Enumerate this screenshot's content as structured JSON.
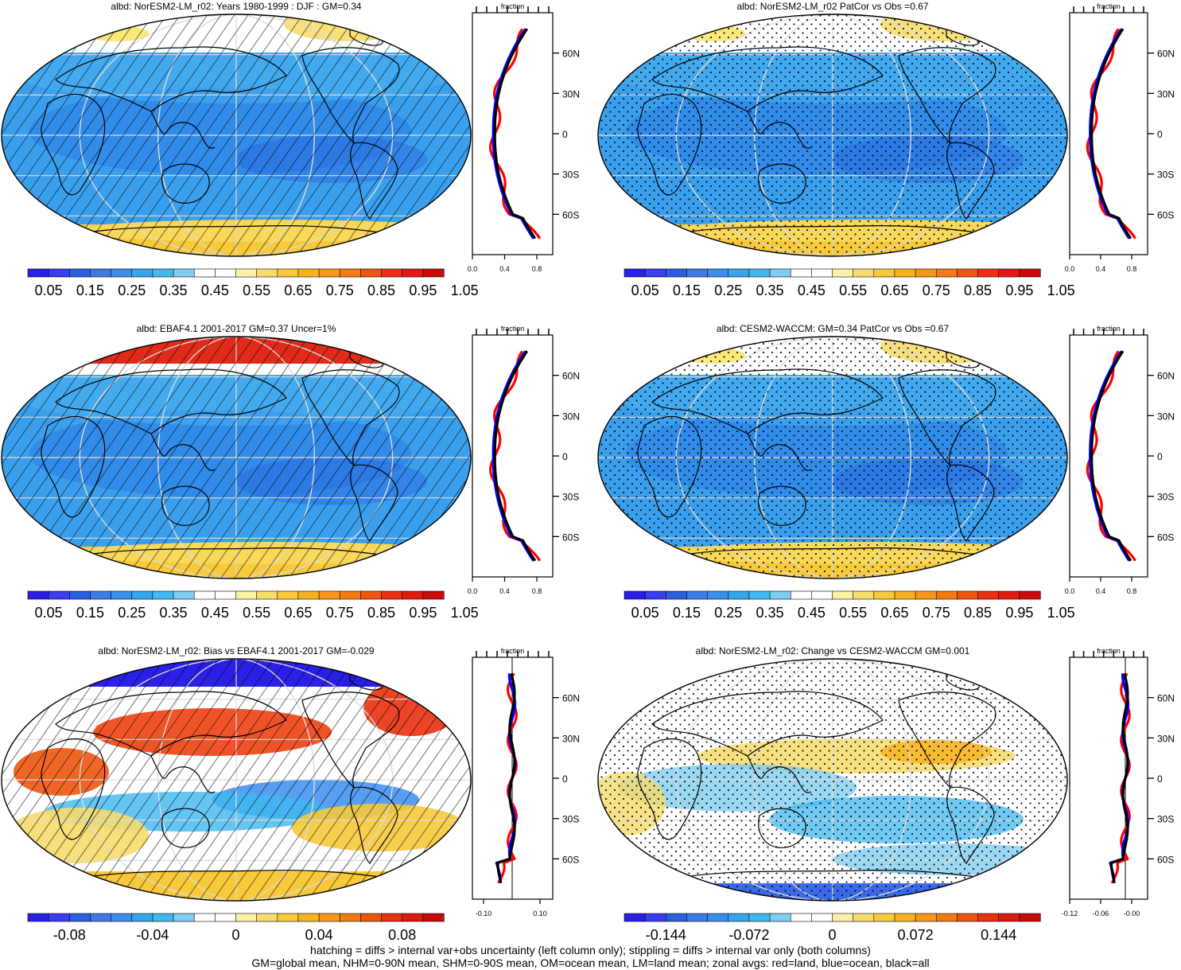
{
  "chart_data": [
    {
      "type": "heatmap",
      "title": "albd: NorESM2-LM_r02: Years 1980-1999 : DJF : GM=0.34",
      "zonal": {
        "title": "fraction",
        "xticks": [
          "0.0",
          "0.4",
          "0.8"
        ],
        "yticks": [
          "60N",
          "30N",
          "0",
          "30S",
          "60S"
        ],
        "series": [
          {
            "color": "#ff0000"
          },
          {
            "color": "#0000ff"
          },
          {
            "color": "#000000"
          }
        ]
      },
      "colorbar": [
        "0.05",
        "0.15",
        "0.25",
        "0.35",
        "0.45",
        "0.55",
        "0.65",
        "0.75",
        "0.85",
        "0.95",
        "1.05"
      ]
    },
    {
      "type": "heatmap",
      "title": "albd: NorESM2-LM_r02 PatCor vs Obs =0.67",
      "zonal": {
        "title": "fraction",
        "xticks": [
          "0.0",
          "0.4",
          "0.8"
        ],
        "yticks": [
          "60N",
          "30N",
          "0",
          "30S",
          "60S"
        ],
        "series": [
          {
            "color": "#ff0000"
          },
          {
            "color": "#0000ff"
          },
          {
            "color": "#000000"
          }
        ]
      },
      "colorbar": [
        "0.05",
        "0.15",
        "0.25",
        "0.35",
        "0.45",
        "0.55",
        "0.65",
        "0.75",
        "0.85",
        "0.95",
        "1.05"
      ]
    },
    {
      "type": "heatmap",
      "title": "albd: EBAF4.1 2001-2017 GM=0.37 Uncer=1%",
      "zonal": {
        "title": "fraction",
        "xticks": [
          "0.0",
          "0.4",
          "0.8"
        ],
        "yticks": [
          "60N",
          "30N",
          "0",
          "30S",
          "60S"
        ],
        "series": [
          {
            "color": "#ff0000"
          },
          {
            "color": "#0000ff"
          },
          {
            "color": "#000000"
          }
        ]
      },
      "colorbar": [
        "0.05",
        "0.15",
        "0.25",
        "0.35",
        "0.45",
        "0.55",
        "0.65",
        "0.75",
        "0.85",
        "0.95",
        "1.05"
      ]
    },
    {
      "type": "heatmap",
      "title": "albd: CESM2-WACCM: GM=0.34 PatCor vs Obs =0.67",
      "zonal": {
        "title": "fraction",
        "xticks": [
          "0.0",
          "0.4",
          "0.8"
        ],
        "yticks": [
          "60N",
          "30N",
          "0",
          "30S",
          "60S"
        ],
        "series": [
          {
            "color": "#ff0000"
          },
          {
            "color": "#0000ff"
          },
          {
            "color": "#000000"
          }
        ]
      },
      "colorbar": [
        "0.05",
        "0.15",
        "0.25",
        "0.35",
        "0.45",
        "0.55",
        "0.65",
        "0.75",
        "0.85",
        "0.95",
        "1.05"
      ]
    },
    {
      "type": "heatmap",
      "title": "albd: NorESM2-LM_r02: Bias vs EBAF4.1 2001-2017 GM=-0.029",
      "zonal": {
        "title": "fraction",
        "xticks": [
          "-0.10",
          "0.10"
        ],
        "yticks": [
          "60N",
          "30N",
          "0",
          "30S",
          "60S"
        ],
        "series": [
          {
            "color": "#ff0000"
          },
          {
            "color": "#0000ff"
          },
          {
            "color": "#000000"
          }
        ]
      },
      "colorbar": [
        "-0.08",
        "-0.04",
        "0",
        "0.04",
        "0.08"
      ]
    },
    {
      "type": "heatmap",
      "title": "albd: NorESM2-LM_r02: Change vs CESM2-WACCM GM=0.001",
      "zonal": {
        "title": "fraction",
        "xticks": [
          "-0.12",
          "-0.06",
          "-0.00"
        ],
        "yticks": [
          "60N",
          "30N",
          "0",
          "30S",
          "60S"
        ],
        "series": [
          {
            "color": "#ff0000"
          },
          {
            "color": "#0000ff"
          },
          {
            "color": "#000000"
          }
        ]
      },
      "colorbar": [
        "-0.144",
        "-0.072",
        "0",
        "0.072",
        "0.144"
      ]
    }
  ],
  "palettes": {
    "full": [
      "#2a1fe6",
      "#3a3df0",
      "#2a5fe0",
      "#3d7ae8",
      "#3a8ef0",
      "#34a6ee",
      "#40b8f0",
      "#7fcdf0",
      "#ffffff",
      "#ffffff",
      "#fbf2a8",
      "#f8dc6c",
      "#f7c93b",
      "#f7b21f",
      "#f79618",
      "#f37a12",
      "#ee5510",
      "#ea3010",
      "#e01a10",
      "#c80a0a"
    ],
    "diff": [
      "#2a1fe6",
      "#3a3df0",
      "#2a5fe0",
      "#3d7ae8",
      "#3a8ef0",
      "#34a6ee",
      "#40b8f0",
      "#7fcdf0",
      "#ffffff",
      "#ffffff",
      "#fbf2a8",
      "#f8dc6c",
      "#f7c93b",
      "#f7b21f",
      "#f79618",
      "#f37a12",
      "#ee5510",
      "#ea3010",
      "#e01a10",
      "#c80a0a"
    ]
  },
  "footer": {
    "line1": "hatching = diffs > internal var+obs uncertainty (left column only); stippling = diffs > internal var only (both columns)",
    "line2": "GM=global mean, NHM=0-90N mean, SHM=0-90S mean, OM=ocean mean, LM=land mean; zonal avgs: red=land, blue=ocean, black=all"
  }
}
